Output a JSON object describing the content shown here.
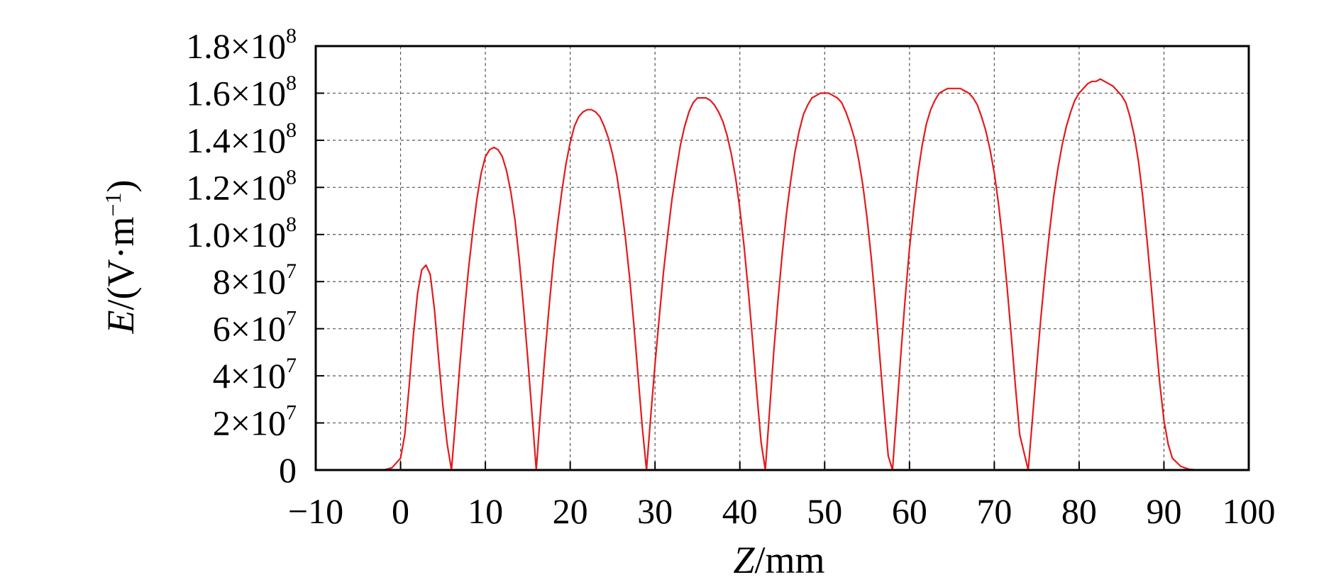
{
  "chart_data": {
    "type": "line",
    "title": "",
    "xlabel": {
      "italic": "Z",
      "rest": "/mm"
    },
    "ylabel": {
      "italic": "E",
      "rest": "/(V·m",
      "sup": "−1",
      "close": ")"
    },
    "xlim": [
      -10,
      100
    ],
    "ylim": [
      0,
      180000000
    ],
    "grid": true,
    "legend": "none",
    "xticks": [
      {
        "value": -10,
        "label": "−10"
      },
      {
        "value": 0,
        "label": "0"
      },
      {
        "value": 10,
        "label": "10"
      },
      {
        "value": 20,
        "label": "20"
      },
      {
        "value": 30,
        "label": "30"
      },
      {
        "value": 40,
        "label": "40"
      },
      {
        "value": 50,
        "label": "50"
      },
      {
        "value": 60,
        "label": "60"
      },
      {
        "value": 70,
        "label": "70"
      },
      {
        "value": 80,
        "label": "80"
      },
      {
        "value": 90,
        "label": "90"
      },
      {
        "value": 100,
        "label": "100"
      }
    ],
    "yticks": [
      {
        "value": 0,
        "label": "0",
        "exp": ""
      },
      {
        "value": 20000000,
        "label": "2×10",
        "exp": "7"
      },
      {
        "value": 40000000,
        "label": "4×10",
        "exp": "7"
      },
      {
        "value": 60000000,
        "label": "6×10",
        "exp": "7"
      },
      {
        "value": 80000000,
        "label": "8×10",
        "exp": "7"
      },
      {
        "value": 100000000,
        "label": "1.0×10",
        "exp": "8"
      },
      {
        "value": 120000000,
        "label": "1.2×10",
        "exp": "8"
      },
      {
        "value": 140000000,
        "label": "1.4×10",
        "exp": "8"
      },
      {
        "value": 160000000,
        "label": "1.6×10",
        "exp": "8"
      },
      {
        "value": 180000000,
        "label": "1.8×10",
        "exp": "8"
      }
    ],
    "series": [
      {
        "color": "#e31a1c",
        "points": [
          [
            -10,
            0
          ],
          [
            -2,
            0
          ],
          [
            -1,
            1000000
          ],
          [
            0,
            5000000
          ],
          [
            0.5,
            15000000
          ],
          [
            1,
            35000000
          ],
          [
            1.5,
            57000000
          ],
          [
            2,
            75000000
          ],
          [
            2.5,
            85000000
          ],
          [
            3,
            87000000
          ],
          [
            3.5,
            83000000
          ],
          [
            4,
            68000000
          ],
          [
            4.5,
            47000000
          ],
          [
            5,
            27000000
          ],
          [
            5.5,
            11000000
          ],
          [
            6,
            0
          ],
          [
            6.5,
            22000000
          ],
          [
            7,
            45000000
          ],
          [
            7.5,
            66000000
          ],
          [
            8,
            85000000
          ],
          [
            8.5,
            101000000
          ],
          [
            9,
            115000000
          ],
          [
            9.5,
            126000000
          ],
          [
            10,
            133000000
          ],
          [
            10.5,
            136000000
          ],
          [
            11,
            137000000
          ],
          [
            11.5,
            136000000
          ],
          [
            12,
            133000000
          ],
          [
            12.5,
            127000000
          ],
          [
            13,
            118000000
          ],
          [
            13.5,
            106000000
          ],
          [
            14,
            89000000
          ],
          [
            14.5,
            69000000
          ],
          [
            15,
            47000000
          ],
          [
            15.5,
            24000000
          ],
          [
            16,
            0
          ],
          [
            16.5,
            25000000
          ],
          [
            17,
            48000000
          ],
          [
            17.5,
            69000000
          ],
          [
            18,
            88000000
          ],
          [
            18.5,
            104000000
          ],
          [
            19,
            118000000
          ],
          [
            19.5,
            130000000
          ],
          [
            20,
            139000000
          ],
          [
            20.5,
            146000000
          ],
          [
            21,
            150000000
          ],
          [
            21.5,
            152000000
          ],
          [
            22,
            153000000
          ],
          [
            22.5,
            153000000
          ],
          [
            23,
            152000000
          ],
          [
            23.5,
            150000000
          ],
          [
            24,
            146000000
          ],
          [
            24.5,
            141000000
          ],
          [
            25,
            134000000
          ],
          [
            25.5,
            125000000
          ],
          [
            26,
            113000000
          ],
          [
            26.5,
            99000000
          ],
          [
            27,
            82000000
          ],
          [
            27.5,
            62000000
          ],
          [
            28,
            40000000
          ],
          [
            28.5,
            18000000
          ],
          [
            29,
            0
          ],
          [
            29.5,
            23000000
          ],
          [
            30,
            45000000
          ],
          [
            30.5,
            65000000
          ],
          [
            31,
            84000000
          ],
          [
            31.5,
            100000000
          ],
          [
            32,
            115000000
          ],
          [
            32.5,
            127000000
          ],
          [
            33,
            138000000
          ],
          [
            33.5,
            146000000
          ],
          [
            34,
            152000000
          ],
          [
            34.5,
            156000000
          ],
          [
            35,
            158000000
          ],
          [
            35.5,
            158000000
          ],
          [
            36,
            158000000
          ],
          [
            36.5,
            157000000
          ],
          [
            37,
            155000000
          ],
          [
            37.5,
            152000000
          ],
          [
            38,
            148000000
          ],
          [
            38.5,
            142000000
          ],
          [
            39,
            134000000
          ],
          [
            39.5,
            124000000
          ],
          [
            40,
            111000000
          ],
          [
            40.5,
            95000000
          ],
          [
            41,
            76000000
          ],
          [
            41.5,
            55000000
          ],
          [
            42,
            33000000
          ],
          [
            42.5,
            12000000
          ],
          [
            43,
            0
          ],
          [
            43.5,
            25000000
          ],
          [
            44,
            50000000
          ],
          [
            44.5,
            72000000
          ],
          [
            45,
            92000000
          ],
          [
            45.5,
            109000000
          ],
          [
            46,
            123000000
          ],
          [
            46.5,
            135000000
          ],
          [
            47,
            144000000
          ],
          [
            47.5,
            151000000
          ],
          [
            48,
            155000000
          ],
          [
            48.5,
            158000000
          ],
          [
            49,
            159000000
          ],
          [
            49.5,
            160000000
          ],
          [
            50,
            160000000
          ],
          [
            50.5,
            160000000
          ],
          [
            51,
            159000000
          ],
          [
            51.5,
            158000000
          ],
          [
            52,
            156000000
          ],
          [
            52.5,
            152000000
          ],
          [
            53,
            147000000
          ],
          [
            53.5,
            141000000
          ],
          [
            54,
            132000000
          ],
          [
            54.5,
            121000000
          ],
          [
            55,
            107000000
          ],
          [
            55.5,
            90000000
          ],
          [
            56,
            70000000
          ],
          [
            56.5,
            48000000
          ],
          [
            57,
            26000000
          ],
          [
            57.5,
            6000000
          ],
          [
            58,
            0
          ],
          [
            58.5,
            25000000
          ],
          [
            59,
            50000000
          ],
          [
            59.5,
            73000000
          ],
          [
            60,
            94000000
          ],
          [
            60.5,
            111000000
          ],
          [
            61,
            126000000
          ],
          [
            61.5,
            138000000
          ],
          [
            62,
            147000000
          ],
          [
            62.5,
            153000000
          ],
          [
            63,
            157000000
          ],
          [
            63.5,
            160000000
          ],
          [
            64,
            161000000
          ],
          [
            64.5,
            162000000
          ],
          [
            65,
            162000000
          ],
          [
            65.5,
            162000000
          ],
          [
            66,
            162000000
          ],
          [
            66.5,
            161000000
          ],
          [
            67,
            160000000
          ],
          [
            67.5,
            158000000
          ],
          [
            68,
            155000000
          ],
          [
            68.5,
            150000000
          ],
          [
            69,
            144000000
          ],
          [
            69.5,
            136000000
          ],
          [
            70,
            126000000
          ],
          [
            70.5,
            113000000
          ],
          [
            71,
            97000000
          ],
          [
            71.5,
            78000000
          ],
          [
            72,
            57000000
          ],
          [
            72.5,
            35000000
          ],
          [
            73,
            15000000
          ],
          [
            74,
            0
          ],
          [
            74.5,
            22000000
          ],
          [
            75,
            44000000
          ],
          [
            75.5,
            65000000
          ],
          [
            76,
            84000000
          ],
          [
            76.5,
            101000000
          ],
          [
            77,
            116000000
          ],
          [
            77.5,
            128000000
          ],
          [
            78,
            138000000
          ],
          [
            78.5,
            146000000
          ],
          [
            79,
            152000000
          ],
          [
            79.5,
            157000000
          ],
          [
            80,
            160000000
          ],
          [
            80.5,
            162000000
          ],
          [
            81,
            164000000
          ],
          [
            81.5,
            165000000
          ],
          [
            82,
            165000000
          ],
          [
            82.5,
            166000000
          ],
          [
            83,
            165000000
          ],
          [
            83.5,
            164000000
          ],
          [
            84,
            163000000
          ],
          [
            84.5,
            161000000
          ],
          [
            85,
            159000000
          ],
          [
            85.5,
            156000000
          ],
          [
            86,
            150000000
          ],
          [
            86.5,
            142000000
          ],
          [
            87,
            131000000
          ],
          [
            87.5,
            116000000
          ],
          [
            88,
            98000000
          ],
          [
            88.5,
            78000000
          ],
          [
            89,
            57000000
          ],
          [
            89.5,
            37000000
          ],
          [
            90,
            21000000
          ],
          [
            90.5,
            11000000
          ],
          [
            91,
            5000000
          ],
          [
            92,
            1500000
          ],
          [
            93,
            300000
          ],
          [
            94,
            0
          ],
          [
            100,
            0
          ]
        ]
      }
    ]
  }
}
